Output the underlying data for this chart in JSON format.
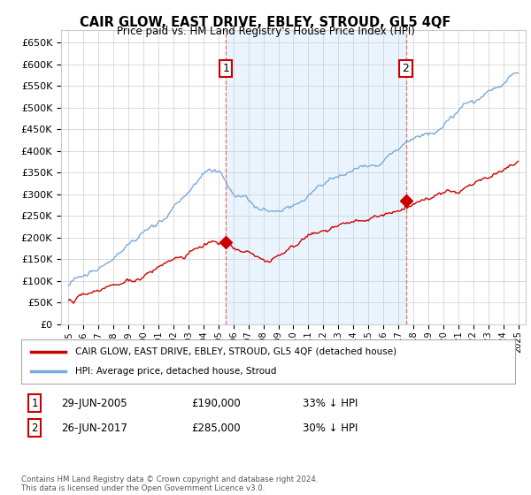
{
  "title": "CAIR GLOW, EAST DRIVE, EBLEY, STROUD, GL5 4QF",
  "subtitle": "Price paid vs. HM Land Registry's House Price Index (HPI)",
  "ylim": [
    0,
    680000
  ],
  "yticks": [
    0,
    50000,
    100000,
    150000,
    200000,
    250000,
    300000,
    350000,
    400000,
    450000,
    500000,
    550000,
    600000,
    650000
  ],
  "x_start_year": 1995,
  "x_end_year": 2025,
  "purchase1_year": 2005.5,
  "purchase1_price": 190000,
  "purchase1_date": "29-JUN-2005",
  "purchase1_hpi_diff": "33% ↓ HPI",
  "purchase2_year": 2017.5,
  "purchase2_price": 285000,
  "purchase2_date": "26-JUN-2017",
  "purchase2_hpi_diff": "30% ↓ HPI",
  "legend_label_red": "CAIR GLOW, EAST DRIVE, EBLEY, STROUD, GL5 4QF (detached house)",
  "legend_label_blue": "HPI: Average price, detached house, Stroud",
  "footer": "Contains HM Land Registry data © Crown copyright and database right 2024.\nThis data is licensed under the Open Government Licence v3.0.",
  "hpi_color": "#7aabdb",
  "price_color": "#cc0000",
  "grid_color": "#cccccc",
  "background_color": "#ffffff",
  "vline_color": "#ff6666",
  "shade_color": "#ddeeff"
}
